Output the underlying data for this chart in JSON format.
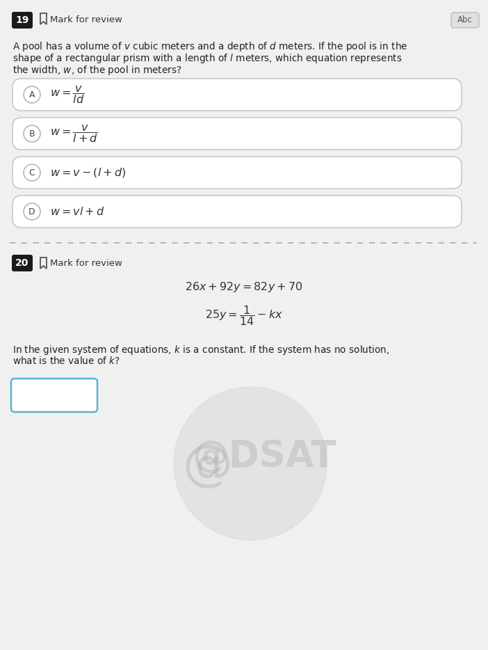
{
  "page_bg": "#eeeeee",
  "content_bg": "#f7f7f7",
  "q19_number": "19",
  "q19_mark_text": "Mark for review",
  "abc_label": "Abc",
  "q19_text_line1": "A pool has a volume of $v$ cubic meters and a depth of $d$ meters. If the pool is in the",
  "q19_text_line2": "shape of a rectangular prism with a length of $l$ meters, which equation represents",
  "q19_text_line3": "the width, $w$, of the pool in meters?",
  "option_labels": [
    "A",
    "B",
    "C",
    "D"
  ],
  "option_formulas": [
    "$w = \\dfrac{v}{ld}$",
    "$w = \\dfrac{v}{l+d}$",
    "$w = v-(l+d)$",
    "$w = vl+d$"
  ],
  "q20_number": "20",
  "q20_mark_text": "Mark for review",
  "eq1": "$26x + 92y = 82y + 70$",
  "eq2": "$25y = \\dfrac{1}{14} - kx$",
  "q20_text_line1": "In the given system of equations, $k$ is a constant. If the system has no solution,",
  "q20_text_line2": "what is the value of $k$?",
  "box_color": "#5ab4d4",
  "number_bg": "#1a1a1a",
  "number_fg": "#ffffff",
  "text_color": "#222222",
  "option_edge": "#c0c0c0",
  "abc_bg": "#e0e0e0",
  "abc_edge": "#bbbbbb",
  "dsat_color": "#c8c8c8",
  "dsat_alpha": 0.55,
  "bookmark_color": "#555555"
}
